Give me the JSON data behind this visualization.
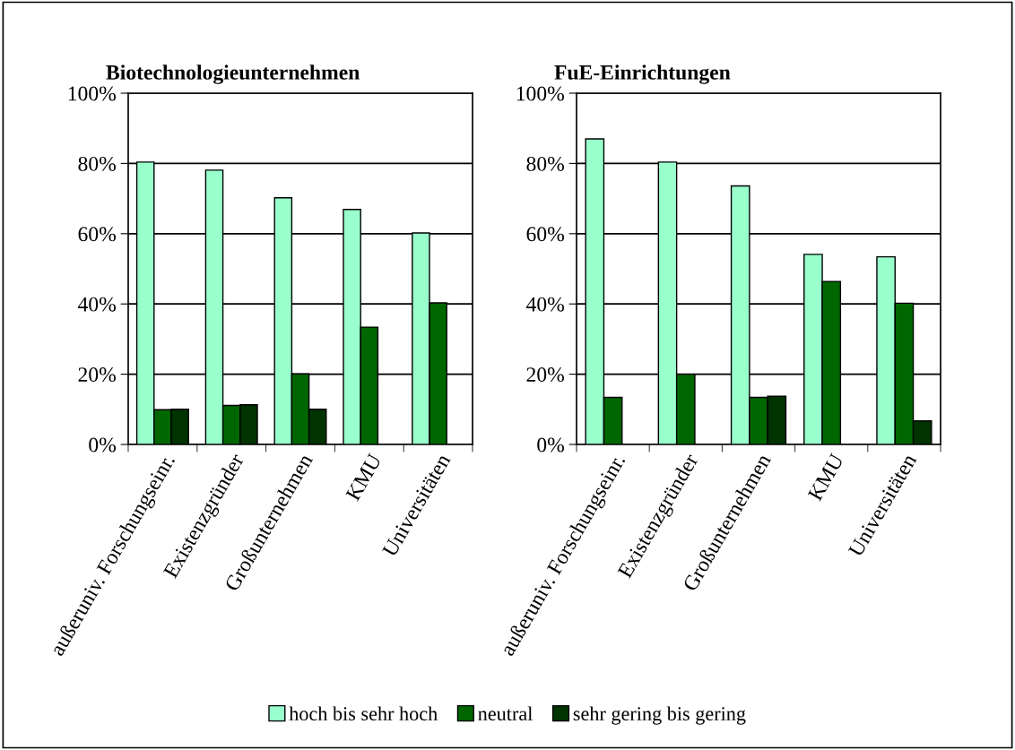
{
  "chart_data": [
    {
      "type": "bar",
      "title": "Biotechnologieunternehmen",
      "categories": [
        "außeruniv. Forschungseinr.",
        "Existenzgründer",
        "Großunternehmen",
        "KMU",
        "Universitäten"
      ],
      "ylim": [
        0,
        100
      ],
      "yticks": [
        {
          "value": 0,
          "label": "0%"
        },
        {
          "value": 20,
          "label": "20%"
        },
        {
          "value": 40,
          "label": "40%"
        },
        {
          "value": 60,
          "label": "60%"
        },
        {
          "value": 80,
          "label": "80%"
        },
        {
          "value": 100,
          "label": "100%"
        }
      ],
      "grid": "y",
      "legend": "bottom",
      "series": [
        {
          "name": "hoch bis sehr hoch",
          "color": "#99ffcc",
          "values": [
            80.4,
            78.1,
            70.2,
            66.9,
            60.2
          ]
        },
        {
          "name": "neutral",
          "color": "#006600",
          "values": [
            9.9,
            11.1,
            20.1,
            33.4,
            40.3
          ]
        },
        {
          "name": "sehr gering bis gering",
          "color": "#003300",
          "values": [
            10.0,
            11.3,
            10.0,
            null,
            null
          ]
        }
      ]
    },
    {
      "type": "bar",
      "title": "FuE-Einrichtungen",
      "categories": [
        "außeruniv. Forschungseinr.",
        "Existenzgründer",
        "Großunternehmen",
        "KMU",
        "Universitäten"
      ],
      "ylim": [
        0,
        100
      ],
      "yticks": [
        {
          "value": 0,
          "label": "0%"
        },
        {
          "value": 20,
          "label": "20%"
        },
        {
          "value": 40,
          "label": "40%"
        },
        {
          "value": 60,
          "label": "60%"
        },
        {
          "value": 80,
          "label": "80%"
        },
        {
          "value": 100,
          "label": "100%"
        }
      ],
      "grid": "y",
      "series": [
        {
          "color": "#99ffcc",
          "values": [
            87.0,
            80.4,
            73.6,
            54.1,
            53.4
          ]
        },
        {
          "color": "#006600",
          "values": [
            13.4,
            20.0,
            13.4,
            46.4,
            40.2
          ]
        },
        {
          "color": "#003300",
          "values": [
            null,
            null,
            13.7,
            null,
            6.7
          ]
        }
      ]
    }
  ]
}
